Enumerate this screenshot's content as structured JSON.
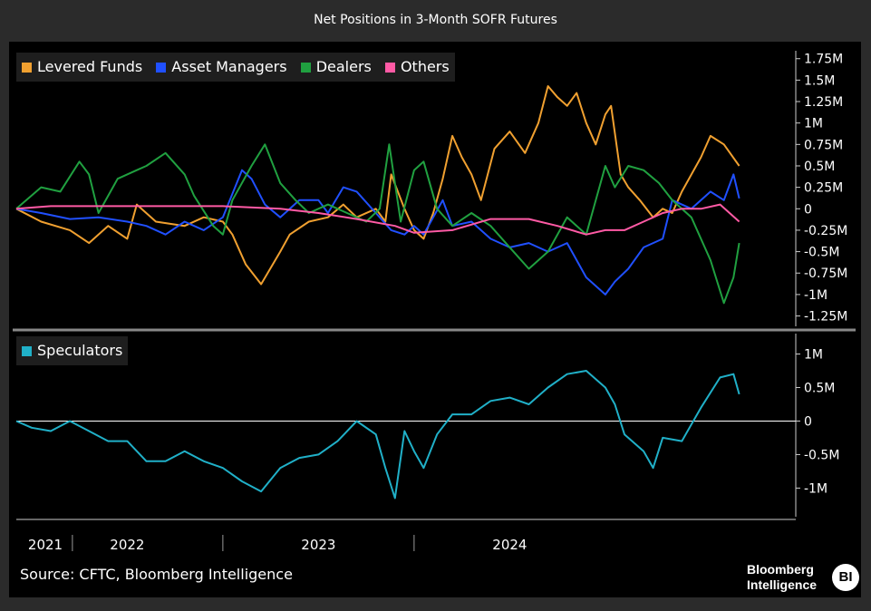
{
  "title": "Net Positions in 3-Month SOFR Futures",
  "source": "Source: CFTC, Bloomberg Intelligence",
  "brand": {
    "line1": "Bloomberg",
    "line2": "Intelligence",
    "badge": "BI"
  },
  "x_axis_labels": [
    "2021",
    "2022",
    "2023",
    "2024"
  ],
  "chart_data": [
    {
      "type": "line",
      "x_unit": "year",
      "xlim": [
        2020.92,
        2024.92
      ],
      "ylim": [
        -1350000,
        1800000
      ],
      "grid": false,
      "legend_position": "top-left",
      "yticks": [
        1750000,
        1500000,
        1250000,
        1000000,
        750000,
        500000,
        250000,
        0,
        -250000,
        -500000,
        -750000,
        -1000000,
        -1250000
      ],
      "ytick_labels": [
        "1.75M",
        "1.5M",
        "1.25M",
        "1M",
        "0.75M",
        "0.5M",
        "0.25M",
        "0",
        "-0.25M",
        "-0.5M",
        "-0.75M",
        "-1M",
        "-1.25M"
      ],
      "series": [
        {
          "name": "Levered Funds",
          "color": "#f0a030",
          "points": [
            [
              2020.92,
              0
            ],
            [
              2021.05,
              -150000
            ],
            [
              2021.2,
              -250000
            ],
            [
              2021.3,
              -400000
            ],
            [
              2021.4,
              -200000
            ],
            [
              2021.5,
              -350000
            ],
            [
              2021.55,
              50000
            ],
            [
              2021.65,
              -150000
            ],
            [
              2021.8,
              -200000
            ],
            [
              2021.9,
              -100000
            ],
            [
              2022.0,
              -150000
            ],
            [
              2022.05,
              -300000
            ],
            [
              2022.12,
              -650000
            ],
            [
              2022.2,
              -880000
            ],
            [
              2022.3,
              -500000
            ],
            [
              2022.35,
              -300000
            ],
            [
              2022.45,
              -150000
            ],
            [
              2022.55,
              -100000
            ],
            [
              2022.63,
              50000
            ],
            [
              2022.7,
              -100000
            ],
            [
              2022.8,
              0
            ],
            [
              2022.85,
              -150000
            ],
            [
              2022.88,
              400000
            ],
            [
              2022.95,
              0
            ],
            [
              2023.0,
              -250000
            ],
            [
              2023.05,
              -350000
            ],
            [
              2023.1,
              -50000
            ],
            [
              2023.15,
              350000
            ],
            [
              2023.2,
              850000
            ],
            [
              2023.25,
              600000
            ],
            [
              2023.3,
              400000
            ],
            [
              2023.35,
              100000
            ],
            [
              2023.42,
              700000
            ],
            [
              2023.5,
              900000
            ],
            [
              2023.58,
              650000
            ],
            [
              2023.65,
              1000000
            ],
            [
              2023.7,
              1430000
            ],
            [
              2023.75,
              1300000
            ],
            [
              2023.8,
              1200000
            ],
            [
              2023.85,
              1350000
            ],
            [
              2023.9,
              1000000
            ],
            [
              2023.95,
              750000
            ],
            [
              2024.0,
              1100000
            ],
            [
              2024.03,
              1200000
            ],
            [
              2024.08,
              400000
            ],
            [
              2024.12,
              250000
            ],
            [
              2024.18,
              100000
            ],
            [
              2024.25,
              -100000
            ],
            [
              2024.3,
              0
            ],
            [
              2024.35,
              -50000
            ],
            [
              2024.4,
              200000
            ],
            [
              2024.5,
              600000
            ],
            [
              2024.55,
              850000
            ],
            [
              2024.62,
              750000
            ],
            [
              2024.7,
              500000
            ]
          ]
        },
        {
          "name": "Asset Managers",
          "color": "#2050ff",
          "points": [
            [
              2020.92,
              0
            ],
            [
              2021.05,
              -50000
            ],
            [
              2021.2,
              -120000
            ],
            [
              2021.35,
              -100000
            ],
            [
              2021.5,
              -150000
            ],
            [
              2021.6,
              -200000
            ],
            [
              2021.7,
              -300000
            ],
            [
              2021.8,
              -150000
            ],
            [
              2021.9,
              -250000
            ],
            [
              2022.0,
              -100000
            ],
            [
              2022.1,
              450000
            ],
            [
              2022.15,
              350000
            ],
            [
              2022.22,
              50000
            ],
            [
              2022.3,
              -100000
            ],
            [
              2022.4,
              100000
            ],
            [
              2022.5,
              100000
            ],
            [
              2022.55,
              -50000
            ],
            [
              2022.63,
              250000
            ],
            [
              2022.7,
              200000
            ],
            [
              2022.8,
              -50000
            ],
            [
              2022.88,
              -250000
            ],
            [
              2022.95,
              -300000
            ],
            [
              2023.0,
              -200000
            ],
            [
              2023.05,
              -300000
            ],
            [
              2023.15,
              100000
            ],
            [
              2023.2,
              -200000
            ],
            [
              2023.3,
              -150000
            ],
            [
              2023.4,
              -350000
            ],
            [
              2023.5,
              -450000
            ],
            [
              2023.6,
              -400000
            ],
            [
              2023.7,
              -500000
            ],
            [
              2023.8,
              -400000
            ],
            [
              2023.9,
              -800000
            ],
            [
              2024.0,
              -1000000
            ],
            [
              2024.05,
              -850000
            ],
            [
              2024.12,
              -700000
            ],
            [
              2024.2,
              -450000
            ],
            [
              2024.3,
              -350000
            ],
            [
              2024.35,
              100000
            ],
            [
              2024.45,
              0
            ],
            [
              2024.55,
              200000
            ],
            [
              2024.62,
              100000
            ],
            [
              2024.67,
              400000
            ],
            [
              2024.7,
              120000
            ]
          ]
        },
        {
          "name": "Dealers",
          "color": "#20a040",
          "points": [
            [
              2020.92,
              0
            ],
            [
              2021.05,
              250000
            ],
            [
              2021.15,
              200000
            ],
            [
              2021.25,
              550000
            ],
            [
              2021.3,
              400000
            ],
            [
              2021.35,
              -50000
            ],
            [
              2021.45,
              350000
            ],
            [
              2021.55,
              450000
            ],
            [
              2021.6,
              500000
            ],
            [
              2021.7,
              650000
            ],
            [
              2021.8,
              400000
            ],
            [
              2021.85,
              150000
            ],
            [
              2021.95,
              -200000
            ],
            [
              2022.0,
              -300000
            ],
            [
              2022.05,
              100000
            ],
            [
              2022.15,
              500000
            ],
            [
              2022.22,
              750000
            ],
            [
              2022.3,
              300000
            ],
            [
              2022.38,
              100000
            ],
            [
              2022.45,
              -50000
            ],
            [
              2022.55,
              50000
            ],
            [
              2022.65,
              -50000
            ],
            [
              2022.75,
              -150000
            ],
            [
              2022.82,
              0
            ],
            [
              2022.87,
              750000
            ],
            [
              2022.93,
              -150000
            ],
            [
              2023.0,
              450000
            ],
            [
              2023.05,
              550000
            ],
            [
              2023.12,
              0
            ],
            [
              2023.2,
              -200000
            ],
            [
              2023.3,
              -50000
            ],
            [
              2023.4,
              -200000
            ],
            [
              2023.5,
              -450000
            ],
            [
              2023.6,
              -700000
            ],
            [
              2023.7,
              -500000
            ],
            [
              2023.8,
              -100000
            ],
            [
              2023.9,
              -300000
            ],
            [
              2024.0,
              500000
            ],
            [
              2024.05,
              250000
            ],
            [
              2024.12,
              500000
            ],
            [
              2024.2,
              450000
            ],
            [
              2024.28,
              300000
            ],
            [
              2024.35,
              100000
            ],
            [
              2024.45,
              -100000
            ],
            [
              2024.55,
              -600000
            ],
            [
              2024.62,
              -1100000
            ],
            [
              2024.67,
              -800000
            ],
            [
              2024.7,
              -400000
            ]
          ]
        },
        {
          "name": "Others",
          "color": "#ff5aa5",
          "points": [
            [
              2020.92,
              0
            ],
            [
              2021.1,
              30000
            ],
            [
              2021.5,
              30000
            ],
            [
              2022.0,
              30000
            ],
            [
              2022.3,
              0
            ],
            [
              2022.5,
              -50000
            ],
            [
              2022.7,
              -120000
            ],
            [
              2022.9,
              -200000
            ],
            [
              2023.0,
              -280000
            ],
            [
              2023.2,
              -250000
            ],
            [
              2023.4,
              -120000
            ],
            [
              2023.6,
              -120000
            ],
            [
              2023.75,
              -200000
            ],
            [
              2023.9,
              -300000
            ],
            [
              2024.0,
              -250000
            ],
            [
              2024.1,
              -250000
            ],
            [
              2024.2,
              -150000
            ],
            [
              2024.3,
              -50000
            ],
            [
              2024.4,
              0
            ],
            [
              2024.5,
              0
            ],
            [
              2024.6,
              50000
            ],
            [
              2024.7,
              -150000
            ]
          ]
        }
      ]
    },
    {
      "type": "line",
      "x_unit": "year",
      "xlim": [
        2020.92,
        2024.92
      ],
      "ylim": [
        -1400000,
        1250000
      ],
      "grid": false,
      "legend_position": "top-left",
      "yticks": [
        1000000,
        500000,
        0,
        -500000,
        -1000000
      ],
      "ytick_labels": [
        "1M",
        "0.5M",
        "0",
        "-0.5M",
        "-1M"
      ],
      "series": [
        {
          "name": "Speculators",
          "color": "#20b0c8",
          "points": [
            [
              2020.92,
              0
            ],
            [
              2021.0,
              -100000
            ],
            [
              2021.1,
              -150000
            ],
            [
              2021.2,
              0
            ],
            [
              2021.3,
              -150000
            ],
            [
              2021.4,
              -300000
            ],
            [
              2021.5,
              -300000
            ],
            [
              2021.6,
              -600000
            ],
            [
              2021.7,
              -600000
            ],
            [
              2021.8,
              -450000
            ],
            [
              2021.9,
              -600000
            ],
            [
              2022.0,
              -700000
            ],
            [
              2022.1,
              -900000
            ],
            [
              2022.2,
              -1050000
            ],
            [
              2022.3,
              -700000
            ],
            [
              2022.4,
              -550000
            ],
            [
              2022.5,
              -500000
            ],
            [
              2022.6,
              -300000
            ],
            [
              2022.7,
              0
            ],
            [
              2022.8,
              -200000
            ],
            [
              2022.85,
              -700000
            ],
            [
              2022.9,
              -1150000
            ],
            [
              2022.95,
              -150000
            ],
            [
              2023.0,
              -450000
            ],
            [
              2023.05,
              -700000
            ],
            [
              2023.12,
              -200000
            ],
            [
              2023.2,
              100000
            ],
            [
              2023.3,
              100000
            ],
            [
              2023.4,
              300000
            ],
            [
              2023.5,
              350000
            ],
            [
              2023.6,
              250000
            ],
            [
              2023.7,
              500000
            ],
            [
              2023.8,
              700000
            ],
            [
              2023.9,
              750000
            ],
            [
              2024.0,
              500000
            ],
            [
              2024.05,
              250000
            ],
            [
              2024.1,
              -200000
            ],
            [
              2024.2,
              -450000
            ],
            [
              2024.25,
              -700000
            ],
            [
              2024.3,
              -250000
            ],
            [
              2024.4,
              -300000
            ],
            [
              2024.5,
              200000
            ],
            [
              2024.6,
              650000
            ],
            [
              2024.67,
              700000
            ],
            [
              2024.7,
              400000
            ]
          ]
        }
      ]
    }
  ]
}
